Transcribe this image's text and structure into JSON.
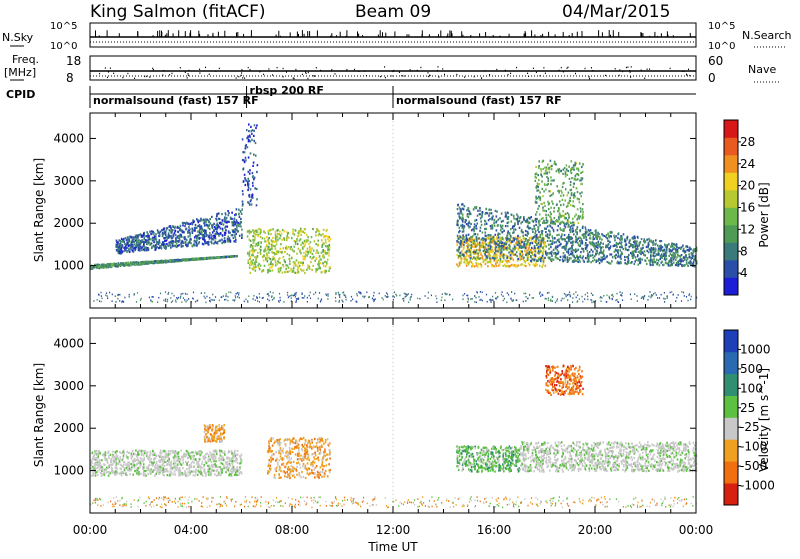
{
  "header": {
    "station": "King Salmon (fitACF)",
    "beam": "Beam 09",
    "date": "04/Mar/2015"
  },
  "top_panels": {
    "nsky_label": "N.Sky",
    "nsky_ticks": [
      "10^5",
      "10^0"
    ],
    "nsearch_label": "N.Search",
    "nsearch_ticks": [
      "10^5",
      "10^0"
    ],
    "freq_label": "Freq.",
    "freq_unit": "[MHz]",
    "freq_ticks": [
      "18",
      "8"
    ],
    "nave_label": "Nave",
    "nave_ticks": [
      "60",
      "0"
    ],
    "cpid_label": "CPID",
    "cpid_segments": [
      {
        "text": "normalsound (fast) 157 RF",
        "start_hour": 0,
        "end_hour": 6.2
      },
      {
        "text": "rbsp 200 RF",
        "start_hour": 6.2,
        "end_hour": 12.0
      },
      {
        "text": "normalsound (fast) 157 RF",
        "start_hour": 12.0,
        "end_hour": 24
      }
    ]
  },
  "power_colorbar": {
    "label": "Power [dB]",
    "ticks": [
      "28",
      "24",
      "20",
      "16",
      "12",
      "8",
      "4"
    ],
    "colors": [
      "#1d1dd8",
      "#2b4fa8",
      "#3a7a7a",
      "#4f9a55",
      "#6cb84a",
      "#b8c830",
      "#f0d020",
      "#f09020",
      "#e85a20",
      "#d81818"
    ]
  },
  "velocity_colorbar": {
    "label": "Velocity [m s^-1]",
    "ticks": [
      "1000",
      "500",
      "100",
      "25",
      "-25",
      "-100",
      "-500",
      "-1000"
    ],
    "colors": [
      "#1d3fb8",
      "#2a6ab0",
      "#2f8f70",
      "#5cc040",
      "#c8c8c8",
      "#f0a020",
      "#f07010",
      "#d82010"
    ]
  },
  "chart_data": [
    {
      "type": "heatmap",
      "title": "",
      "xlabel": "",
      "ylabel": "Slant Range [km]",
      "quantity": "Power [dB]",
      "xlim_hours": [
        0,
        24
      ],
      "ylim": [
        0,
        4600
      ],
      "y_ticks": [
        1000,
        2000,
        3000,
        4000
      ],
      "x_ticks": [
        "00:00",
        "04:00",
        "08:00",
        "12:00",
        "16:00",
        "20:00",
        "00:00"
      ],
      "scatter_regions": [
        {
          "t": [
            0.0,
            5.8
          ],
          "range": [
            950,
            1250
          ],
          "trend": "rising",
          "dB": 10
        },
        {
          "t": [
            1.0,
            6.0
          ],
          "range": [
            1300,
            2400
          ],
          "trend": "rising",
          "dB": 6
        },
        {
          "t": [
            6.2,
            9.5
          ],
          "range": [
            850,
            1900
          ],
          "dB": 16
        },
        {
          "t": [
            6.0,
            6.6
          ],
          "range": [
            2400,
            4400
          ],
          "dB": 5
        },
        {
          "t": [
            14.5,
            18.0
          ],
          "range": [
            1000,
            1700
          ],
          "dB": 20
        },
        {
          "t": [
            14.5,
            24.0
          ],
          "range": [
            1000,
            2500
          ],
          "trend": "falling",
          "dB": 8
        },
        {
          "t": [
            17.6,
            19.5
          ],
          "range": [
            2000,
            3500
          ],
          "dB": 12
        }
      ]
    },
    {
      "type": "heatmap",
      "title": "",
      "xlabel": "Time UT",
      "ylabel": "Slant Range [km]",
      "quantity": "Velocity [m s^-1]",
      "xlim_hours": [
        0,
        24
      ],
      "ylim": [
        0,
        4600
      ],
      "y_ticks": [
        1000,
        2000,
        3000,
        4000
      ],
      "x_ticks": [
        "00:00",
        "04:00",
        "08:00",
        "12:00",
        "16:00",
        "20:00",
        "00:00"
      ],
      "scatter_regions": [
        {
          "t": [
            0.0,
            6.0
          ],
          "range": [
            900,
            1500
          ],
          "velocity": "-25 to 25"
        },
        {
          "t": [
            4.5,
            5.3
          ],
          "range": [
            1700,
            2100
          ],
          "velocity": "-100"
        },
        {
          "t": [
            7.0,
            9.5
          ],
          "range": [
            850,
            1800
          ],
          "velocity": "-100"
        },
        {
          "t": [
            14.5,
            17.0
          ],
          "range": [
            1000,
            1600
          ],
          "velocity": "100"
        },
        {
          "t": [
            17.0,
            24.0
          ],
          "range": [
            1000,
            1700
          ],
          "velocity": "-25 to 25"
        },
        {
          "t": [
            18.0,
            19.5
          ],
          "range": [
            2800,
            3500
          ],
          "velocity": "-500"
        }
      ]
    }
  ]
}
